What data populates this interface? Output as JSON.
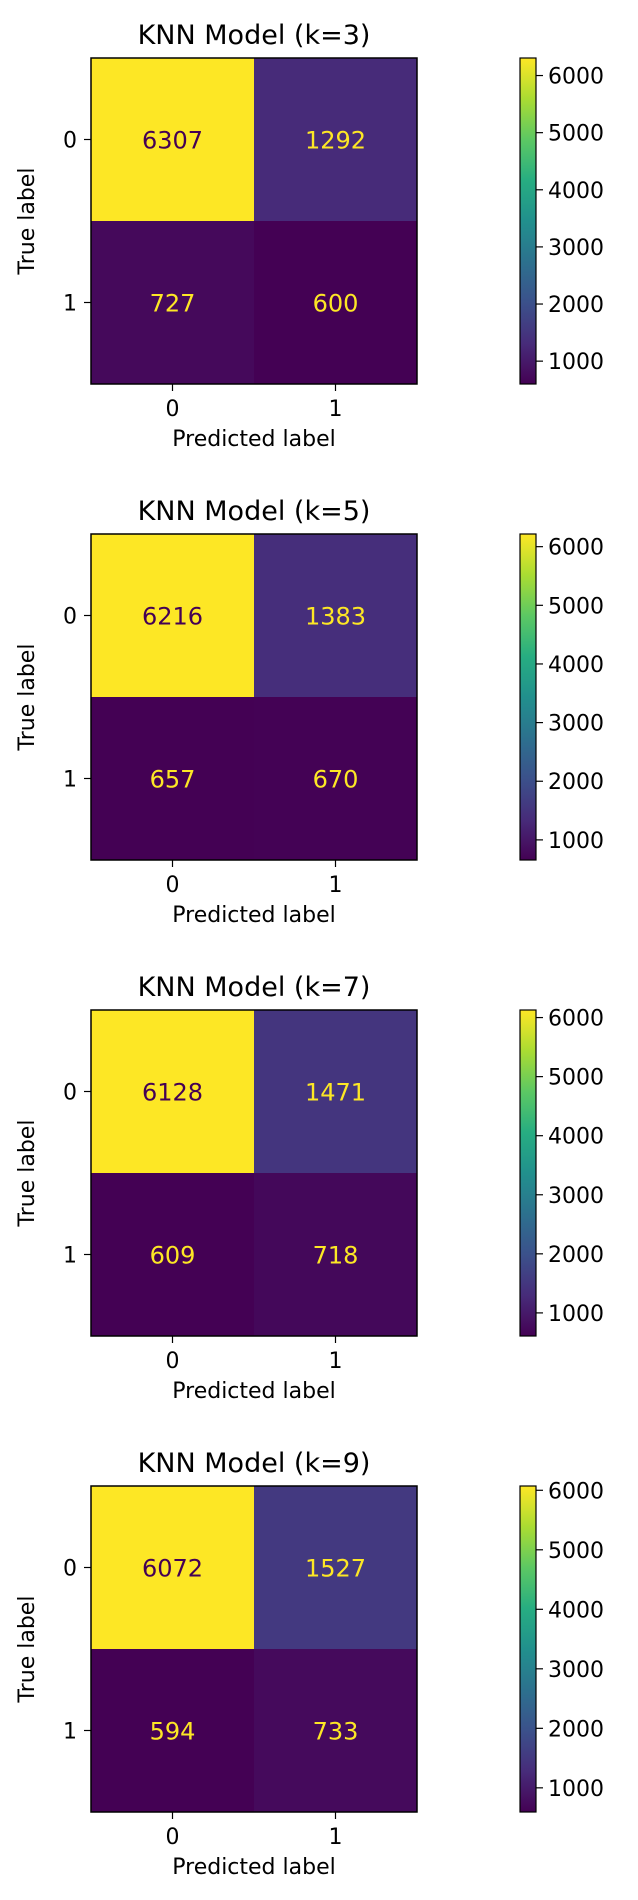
{
  "chart_data": [
    {
      "type": "heatmap",
      "title": "KNN Model (k=3)",
      "xlabel": "Predicted label",
      "ylabel": "True label",
      "x_ticks": [
        "0",
        "1"
      ],
      "y_ticks": [
        "0",
        "1"
      ],
      "matrix": [
        [
          6307,
          1292
        ],
        [
          727,
          600
        ]
      ],
      "colorbar": {
        "colormap": "viridis",
        "ticks": [
          1000,
          2000,
          3000,
          4000,
          5000,
          6000
        ]
      }
    },
    {
      "type": "heatmap",
      "title": "KNN Model (k=5)",
      "xlabel": "Predicted label",
      "ylabel": "True label",
      "x_ticks": [
        "0",
        "1"
      ],
      "y_ticks": [
        "0",
        "1"
      ],
      "matrix": [
        [
          6216,
          1383
        ],
        [
          657,
          670
        ]
      ],
      "colorbar": {
        "colormap": "viridis",
        "ticks": [
          1000,
          2000,
          3000,
          4000,
          5000,
          6000
        ]
      }
    },
    {
      "type": "heatmap",
      "title": "KNN Model (k=7)",
      "xlabel": "Predicted label",
      "ylabel": "True label",
      "x_ticks": [
        "0",
        "1"
      ],
      "y_ticks": [
        "0",
        "1"
      ],
      "matrix": [
        [
          6128,
          1471
        ],
        [
          609,
          718
        ]
      ],
      "colorbar": {
        "colormap": "viridis",
        "ticks": [
          1000,
          2000,
          3000,
          4000,
          5000,
          6000
        ]
      }
    },
    {
      "type": "heatmap",
      "title": "KNN Model (k=9)",
      "xlabel": "Predicted label",
      "ylabel": "True label",
      "x_ticks": [
        "0",
        "1"
      ],
      "y_ticks": [
        "0",
        "1"
      ],
      "matrix": [
        [
          6072,
          1527
        ],
        [
          594,
          733
        ]
      ],
      "colorbar": {
        "colormap": "viridis",
        "ticks": [
          1000,
          2000,
          3000,
          4000,
          5000,
          6000
        ]
      }
    }
  ]
}
